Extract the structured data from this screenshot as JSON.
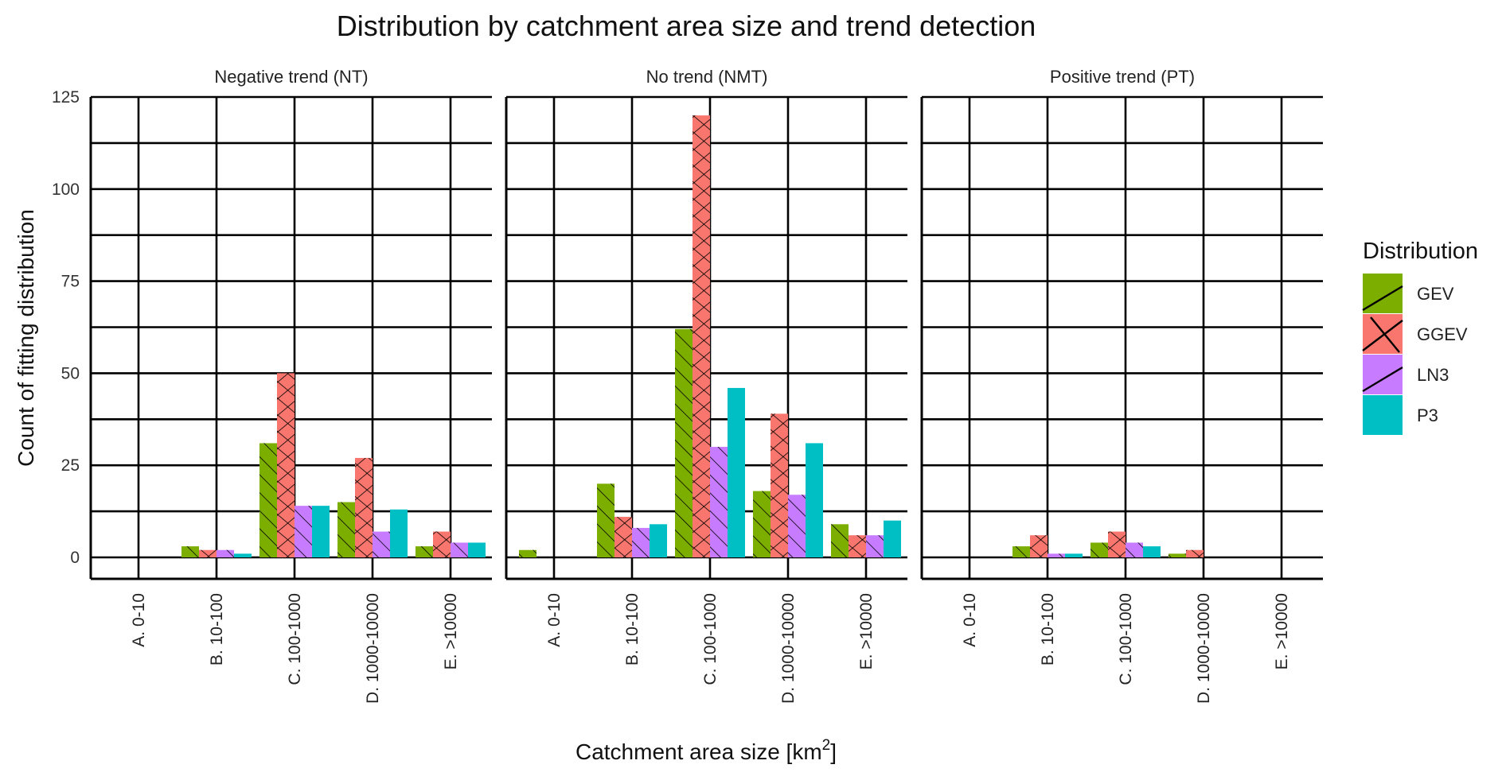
{
  "chart_data": {
    "type": "bar",
    "title": "Distribution by catchment area size and trend detection",
    "xlabel": "Catchment area size [km",
    "xlabel_sup": "2",
    "xlabel_end": "]",
    "ylabel": "Count of fitting distribution",
    "ylim": [
      0,
      125
    ],
    "y_ticks": [
      "0",
      "25",
      "50",
      "75",
      "100",
      "125"
    ],
    "grid": true,
    "legend": {
      "title": "Distribution",
      "placement": "right"
    },
    "categories": [
      "A. 0-10",
      "B. 10-100",
      "C. 100-1000",
      "D. 1000-10000",
      "E. >10000"
    ],
    "panels": [
      {
        "label": "Negative trend (NT)",
        "series": [
          {
            "name": "GEV",
            "values": [
              0,
              3,
              31,
              15,
              3
            ]
          },
          {
            "name": "GGEV",
            "values": [
              0,
              2,
              50,
              27,
              7
            ]
          },
          {
            "name": "LN3",
            "values": [
              0,
              2,
              14,
              7,
              4
            ]
          },
          {
            "name": "P3",
            "values": [
              0,
              1,
              14,
              13,
              4
            ]
          }
        ]
      },
      {
        "label": "No trend (NMT)",
        "series": [
          {
            "name": "GEV",
            "values": [
              2,
              20,
              62,
              18,
              9
            ]
          },
          {
            "name": "GGEV",
            "values": [
              0,
              11,
              120,
              39,
              6
            ]
          },
          {
            "name": "LN3",
            "values": [
              0,
              8,
              30,
              17,
              6
            ]
          },
          {
            "name": "P3",
            "values": [
              0,
              9,
              46,
              31,
              10
            ]
          }
        ]
      },
      {
        "label": "Positive trend (PT)",
        "series": [
          {
            "name": "GEV",
            "values": [
              0,
              3,
              4,
              1,
              0
            ]
          },
          {
            "name": "GGEV",
            "values": [
              0,
              6,
              7,
              2,
              0
            ]
          },
          {
            "name": "LN3",
            "values": [
              0,
              1,
              4,
              0,
              0
            ]
          },
          {
            "name": "P3",
            "values": [
              0,
              1,
              3,
              0,
              0
            ]
          }
        ]
      }
    ],
    "series_styles": [
      {
        "name": "GEV",
        "color": "#7CAE00",
        "pattern": "stripe"
      },
      {
        "name": "GGEV",
        "color": "#F8766D",
        "pattern": "crosshatch"
      },
      {
        "name": "LN3",
        "color": "#C77CFF",
        "pattern": "stripe"
      },
      {
        "name": "P3",
        "color": "#00BFC4",
        "pattern": "none"
      }
    ]
  }
}
